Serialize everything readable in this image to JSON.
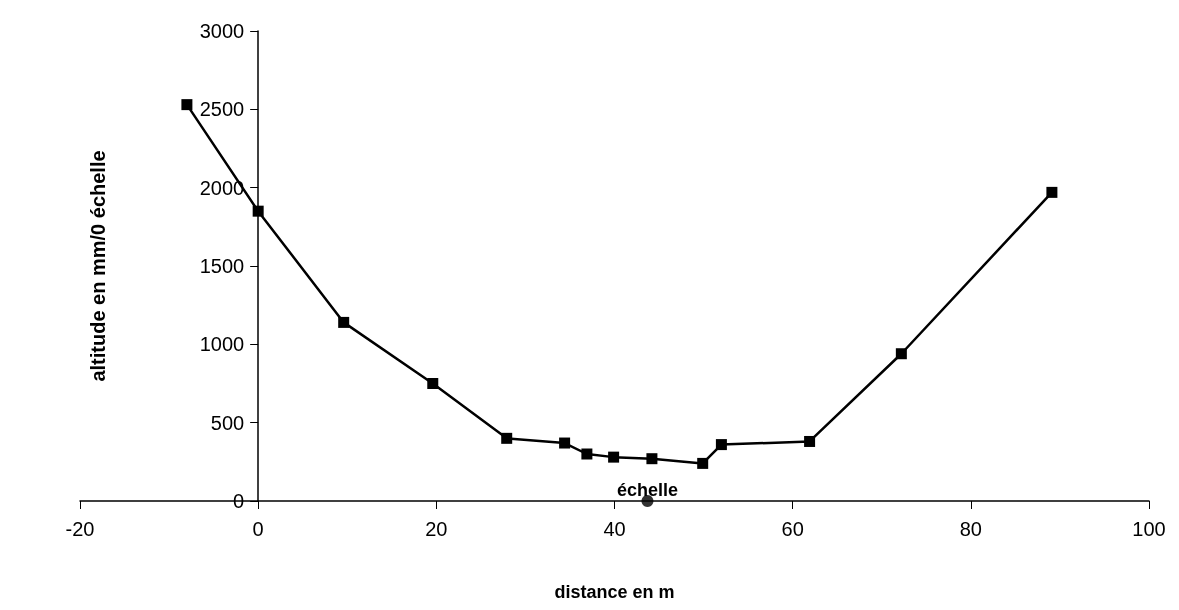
{
  "chart_data": {
    "type": "line",
    "xlabel": "distance en m",
    "ylabel": "altitude en mm/0 échelle",
    "series": [
      {
        "color": "#000000",
        "marker": "square",
        "line_style": "solid",
        "x": [
          -8,
          0,
          9.6,
          19.6,
          27.9,
          34.4,
          36.9,
          39.9,
          44.2,
          49.9,
          52,
          61.9,
          72.2,
          89.1
        ],
        "values": [
          2530,
          1850,
          1140,
          750,
          400,
          370,
          300,
          280,
          270,
          240,
          360,
          380,
          940,
          1970
        ]
      },
      {
        "type": "scatter",
        "color": "#000000",
        "marker": "circle",
        "x": [
          43.7
        ],
        "values": [
          0
        ]
      }
    ],
    "annotations": [
      {
        "text": "échelle",
        "x": 43.7,
        "y": 0
      }
    ],
    "xlim": [
      -20,
      100
    ],
    "xticks": [
      -20,
      0,
      20,
      40,
      60,
      80,
      100
    ],
    "ylim": [
      0,
      3000
    ],
    "yticks": [
      0,
      500,
      1000,
      1500,
      2000,
      2500,
      3000
    ],
    "grid": false
  }
}
